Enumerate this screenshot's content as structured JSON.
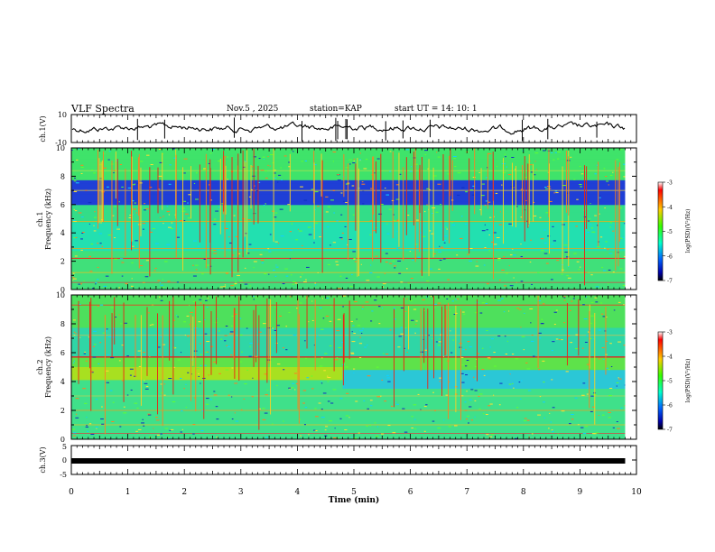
{
  "header": {
    "title": "VLF Spectra",
    "date": "Nov.5 , 2025",
    "station": "station=KAP",
    "start": "start UT = 14: 10: 1"
  },
  "chart_data": [
    {
      "type": "line",
      "panel": "ch1-waveform",
      "ylabel": "ch.1(V)",
      "ylim": [
        -10,
        10
      ],
      "ytick_labels": [
        "10",
        "-10"
      ],
      "series": [
        {
          "name": "ch.1",
          "description": "noisy waveform oscillating roughly between -5 and 5 V"
        }
      ]
    },
    {
      "type": "heatmap",
      "panel": "ch1-spectrogram",
      "ylabel": "ch.1",
      "ylabel2": "Frequency (kHz)",
      "ylim": [
        0,
        10
      ],
      "ytick_labels": [
        "0",
        "2",
        "4",
        "6",
        "8",
        "10"
      ],
      "colorbar": {
        "label": "log(PSD)(V²/Hz)",
        "range": [
          -7,
          -3
        ],
        "tick_labels": [
          "-3",
          "-4",
          "-5",
          "-6",
          "-7"
        ]
      }
    },
    {
      "type": "heatmap",
      "panel": "ch2-spectrogram",
      "ylabel": "ch.2",
      "ylabel2": "Frequency (kHz)",
      "ylim": [
        0,
        10
      ],
      "ytick_labels": [
        "0",
        "2",
        "4",
        "6",
        "8",
        "10"
      ],
      "colorbar": {
        "label": "log(PSD)(V²/Hz)",
        "range": [
          -7,
          -3
        ],
        "tick_labels": [
          "-3",
          "-4",
          "-5",
          "-6",
          "-7"
        ]
      }
    },
    {
      "type": "line",
      "panel": "ch3-signal",
      "ylabel": "ch.3(V)",
      "ylim": [
        -5,
        5
      ],
      "ytick_labels": [
        "5",
        "0",
        "-5"
      ],
      "series": [
        {
          "name": "ch.3",
          "description": "flat band near -1 V"
        }
      ]
    }
  ],
  "xaxis": {
    "label": "Time (min)",
    "range": [
      0,
      10
    ],
    "tick_labels": [
      "0",
      "1",
      "2",
      "3",
      "4",
      "5",
      "6",
      "7",
      "8",
      "9",
      "10"
    ]
  },
  "data_end_min": 9.8,
  "colors": {
    "line": "#000000",
    "axis": "#000000"
  }
}
